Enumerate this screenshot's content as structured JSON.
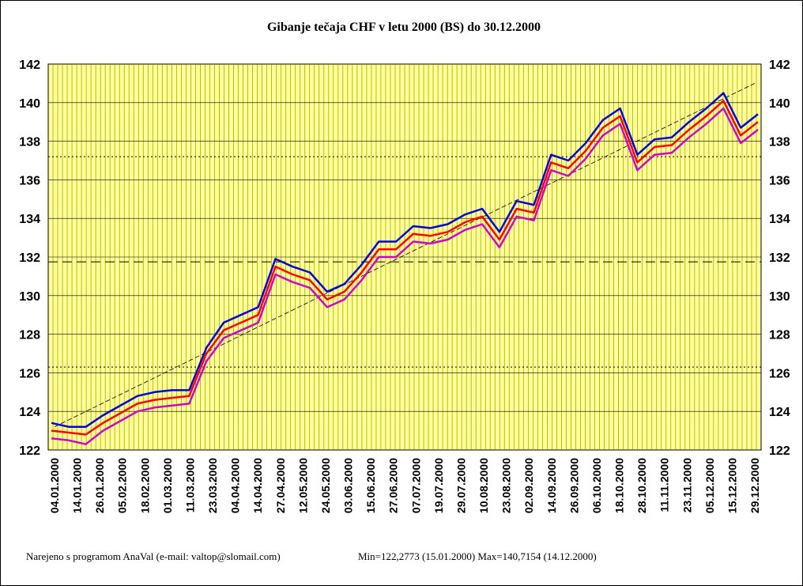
{
  "chart_data": {
    "type": "line",
    "title": "Gibanje tečaja CHF v letu 2000 (BS) do 30.12.2000",
    "footer_left": "Narejeno s programom AnaVal (e-mail: valtop@slomail.com)",
    "footer_right": "Min=122,2773 (15.01.2000) Max=140,7154 (14.12.2000)",
    "ylim": [
      122,
      142
    ],
    "yticks": [
      "122",
      "124",
      "126",
      "128",
      "130",
      "132",
      "134",
      "136",
      "138",
      "140",
      "142"
    ],
    "x_tick_labels": [
      "04.01.2000",
      "14.01.2000",
      "26.01.2000",
      "05.02.2000",
      "18.02.2000",
      "01.03.2000",
      "11.03.2000",
      "23.03.2000",
      "04.04.2000",
      "14.04.2000",
      "27.04.2000",
      "12.05.2000",
      "24.05.2000",
      "03.06.2000",
      "15.06.2000",
      "27.06.2000",
      "07.07.2000",
      "19.07.2000",
      "29.07.2000",
      "10.08.2000",
      "23.08.2000",
      "02.09.2000",
      "14.09.2000",
      "26.09.2000",
      "06.10.2000",
      "18.10.2000",
      "28.10.2000",
      "11.11.2000",
      "23.11.2000",
      "05.12.2000",
      "15.12.2000",
      "29.12.2000"
    ],
    "grid": true,
    "reference_lines": [
      {
        "style": "dotted",
        "value": 137.2
      },
      {
        "style": "dashed",
        "value": 131.75
      },
      {
        "style": "dotted",
        "value": 126.3
      }
    ],
    "trend_line": {
      "from": [
        0,
        123.2
      ],
      "to": [
        31,
        141.0
      ]
    },
    "series": [
      {
        "color": "#0000dd",
        "values": [
          123.4,
          123.2,
          123.2,
          123.8,
          124.3,
          124.8,
          125.0,
          125.1,
          125.1,
          127.3,
          128.6,
          129.0,
          129.4,
          131.9,
          131.5,
          131.2,
          130.2,
          130.6,
          131.6,
          132.8,
          132.8,
          133.6,
          133.5,
          133.7,
          134.2,
          134.5,
          133.3,
          134.9,
          134.7,
          137.3,
          137.0,
          137.9,
          139.1,
          139.7,
          137.3,
          138.1,
          138.2,
          139.0,
          139.7,
          140.5,
          138.7,
          139.4
        ]
      },
      {
        "color": "#ff0000",
        "values": [
          123.0,
          122.9,
          122.8,
          123.4,
          123.9,
          124.4,
          124.6,
          124.7,
          124.8,
          127.0,
          128.2,
          128.6,
          129.0,
          131.5,
          131.1,
          130.8,
          129.8,
          130.2,
          131.2,
          132.4,
          132.4,
          133.2,
          133.1,
          133.3,
          133.8,
          134.1,
          132.9,
          134.5,
          134.3,
          136.9,
          136.6,
          137.5,
          138.7,
          139.3,
          136.9,
          137.7,
          137.8,
          138.6,
          139.3,
          140.1,
          138.3,
          139.0
        ]
      },
      {
        "color": "#cc00cc",
        "values": [
          122.6,
          122.5,
          122.3,
          123.0,
          123.5,
          124.0,
          124.2,
          124.3,
          124.4,
          126.6,
          127.8,
          128.2,
          128.6,
          131.1,
          130.7,
          130.4,
          129.4,
          129.8,
          130.8,
          132.0,
          132.0,
          132.8,
          132.7,
          132.9,
          133.4,
          133.7,
          132.5,
          134.1,
          133.9,
          136.5,
          136.2,
          137.1,
          138.3,
          138.9,
          136.5,
          137.3,
          137.4,
          138.2,
          138.9,
          139.7,
          137.9,
          138.6
        ]
      }
    ]
  }
}
